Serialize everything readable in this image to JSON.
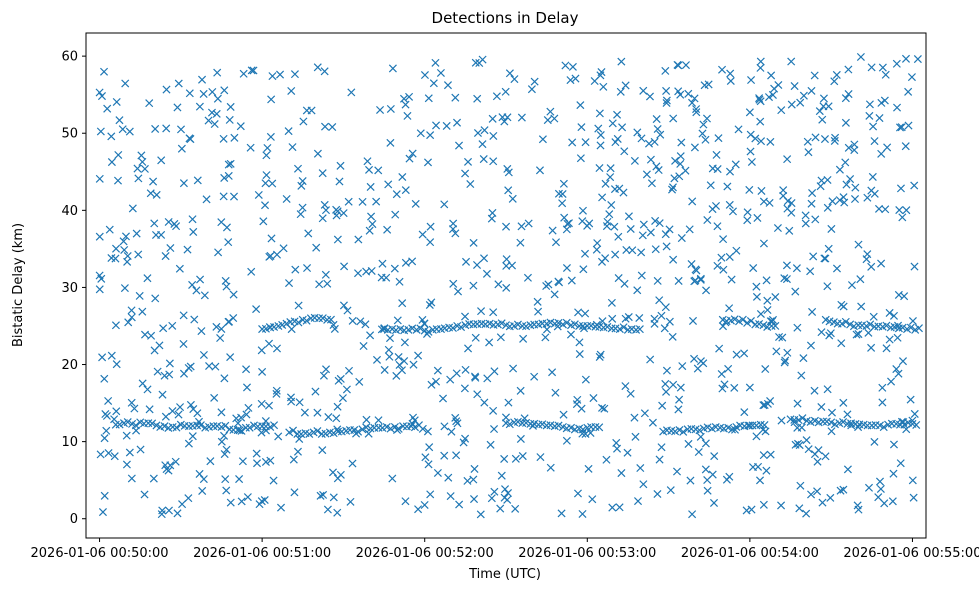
{
  "chart_data": {
    "type": "scatter",
    "title": "Detections in Delay",
    "xlabel": "Time (UTC)",
    "ylabel": "Bistatic Delay (km)",
    "marker": "x",
    "color": "#1f77b4",
    "x_unit": "seconds after 2026-01-06 00:50:00",
    "xlim": [
      -5,
      305
    ],
    "ylim": [
      -2.5,
      63
    ],
    "grid": false,
    "x_ticks": [
      {
        "value": 0,
        "label": "2026-01-06 00:50:00"
      },
      {
        "value": 60,
        "label": "2026-01-06 00:51:00"
      },
      {
        "value": 120,
        "label": "2026-01-06 00:52:00"
      },
      {
        "value": 180,
        "label": "2026-01-06 00:53:00"
      },
      {
        "value": 240,
        "label": "2026-01-06 00:54:00"
      },
      {
        "value": 300,
        "label": "2026-01-06 00:55:00"
      }
    ],
    "y_ticks": [
      {
        "value": 0,
        "label": "0"
      },
      {
        "value": 10,
        "label": "10"
      },
      {
        "value": 20,
        "label": "20"
      },
      {
        "value": 30,
        "label": "30"
      },
      {
        "value": 40,
        "label": "40"
      },
      {
        "value": 50,
        "label": "50"
      },
      {
        "value": 60,
        "label": "60"
      }
    ],
    "tracks": [
      {
        "name": "lower-track-1",
        "x": [
          6,
          9,
          12,
          15,
          18,
          21,
          24,
          27,
          30,
          33,
          36,
          39,
          42,
          45,
          48,
          51,
          54,
          57,
          60,
          63
        ],
        "y": [
          12.2,
          12.4,
          12.3,
          12.5,
          12.4,
          12.1,
          12.0,
          11.9,
          12.2,
          12.0,
          12.1,
          11.8,
          12.0,
          11.9,
          11.6,
          11.5,
          11.8,
          12.1,
          12.0,
          11.9
        ]
      },
      {
        "name": "lower-track-2",
        "x": [
          70,
          73,
          76,
          79,
          82,
          85,
          88,
          91,
          94,
          97,
          100,
          103,
          106,
          109,
          112,
          115
        ],
        "y": [
          11.2,
          11.0,
          11.1,
          11.2,
          11.0,
          11.2,
          11.3,
          11.4,
          11.5,
          11.6,
          11.7,
          11.8,
          11.9,
          11.9,
          12.0,
          12.0
        ]
      },
      {
        "name": "lower-track-3",
        "x": [
          150,
          153,
          156,
          159,
          162,
          165,
          168,
          171,
          174,
          177,
          180,
          183
        ],
        "y": [
          12.4,
          12.5,
          12.4,
          12.3,
          12.2,
          12.1,
          12.0,
          11.9,
          11.8,
          11.7,
          11.8,
          11.9
        ]
      },
      {
        "name": "lower-track-4",
        "x": [
          208,
          211,
          214,
          217,
          220,
          223,
          226,
          229,
          232,
          235,
          238,
          241,
          244
        ],
        "y": [
          11.3,
          11.4,
          11.5,
          11.6,
          11.6,
          11.7,
          11.7,
          11.8,
          11.8,
          11.9,
          12.0,
          12.1,
          12.2
        ]
      },
      {
        "name": "lower-track-5",
        "x": [
          255,
          258,
          261,
          264,
          267,
          270,
          273,
          276,
          279,
          282,
          285,
          288,
          291,
          294,
          297,
          300
        ],
        "y": [
          12.9,
          12.8,
          12.7,
          12.7,
          12.6,
          12.5,
          12.4,
          12.3,
          12.3,
          12.2,
          12.1,
          12.1,
          12.2,
          12.3,
          12.2,
          12.3
        ]
      },
      {
        "name": "upper-track-1",
        "x": [
          60,
          63,
          66,
          69,
          72,
          75,
          78,
          81,
          84
        ],
        "y": [
          24.6,
          24.8,
          25.0,
          25.3,
          25.6,
          25.8,
          26.0,
          26.0,
          25.8
        ]
      },
      {
        "name": "upper-track-2",
        "x": [
          105,
          108,
          111,
          114,
          117,
          120,
          123,
          126,
          129,
          132,
          135,
          138,
          141,
          144,
          147,
          150,
          153,
          156,
          159,
          162,
          165,
          168,
          171,
          174,
          177,
          180,
          183,
          186,
          189,
          192,
          195,
          198
        ],
        "y": [
          24.6,
          24.6,
          24.6,
          24.5,
          24.5,
          24.4,
          24.5,
          24.6,
          24.8,
          25.0,
          25.1,
          25.2,
          25.3,
          25.3,
          25.2,
          25.1,
          25.0,
          25.0,
          25.1,
          25.2,
          25.3,
          25.3,
          25.2,
          25.1,
          25.0,
          25.0,
          24.9,
          24.8,
          24.7,
          24.6,
          24.5,
          24.5
        ]
      },
      {
        "name": "upper-track-3",
        "x": [
          230,
          233,
          236,
          239,
          242,
          245,
          248
        ],
        "y": [
          25.8,
          25.7,
          25.6,
          25.4,
          25.2,
          25.1,
          25.0
        ]
      },
      {
        "name": "upper-track-4",
        "x": [
          268,
          271,
          274,
          277,
          280,
          283,
          286,
          289,
          292,
          295,
          298,
          301
        ],
        "y": [
          25.8,
          25.5,
          25.3,
          25.2,
          25.1,
          25.0,
          24.9,
          24.9,
          24.8,
          24.7,
          24.6,
          24.5
        ]
      }
    ],
    "clutter": {
      "count": 1100,
      "x_range": [
        0,
        302
      ],
      "y_range": [
        0.5,
        60
      ]
    }
  }
}
